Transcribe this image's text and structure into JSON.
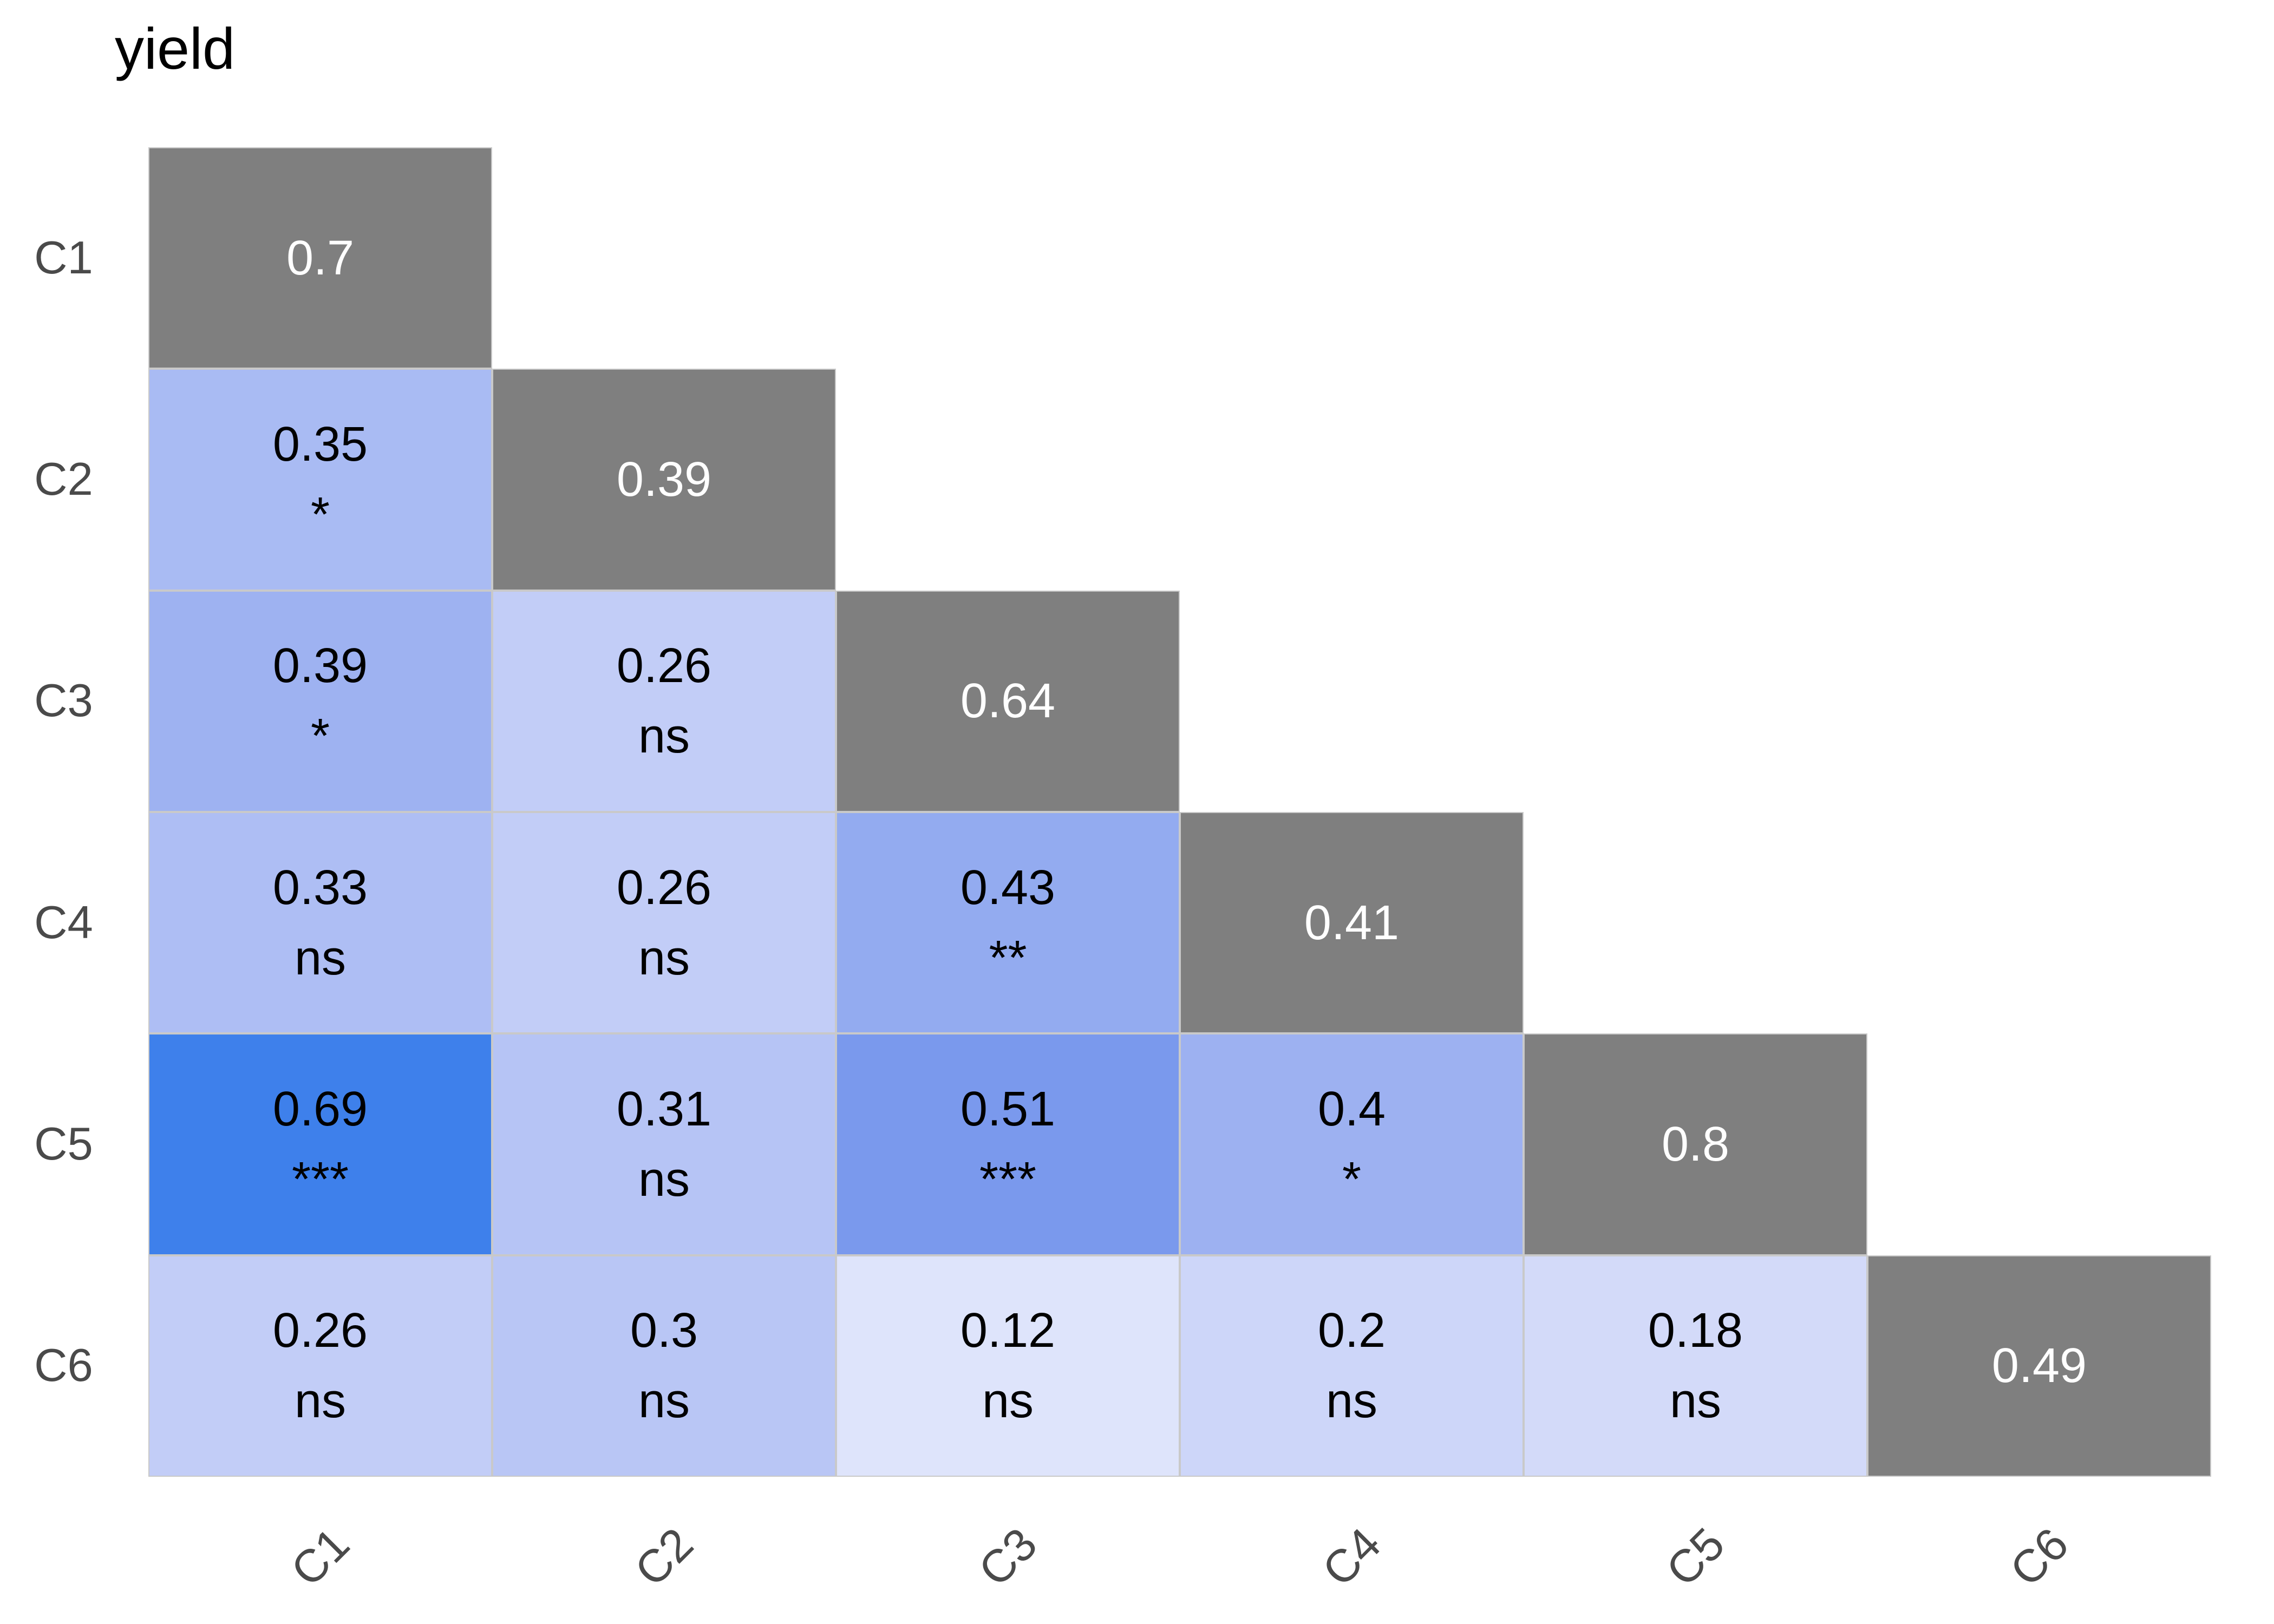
{
  "title": "yield",
  "colors": {
    "background": "#ffffff",
    "diagonal_fill": "#7f7f7f",
    "diagonal_text": "#ffffff",
    "cell_text": "#000000",
    "cell_border": "#c9c9c9",
    "axis_label": "#4a4a4a",
    "title_text": "#000000"
  },
  "chart_data": {
    "type": "heatmap",
    "subtype": "lower-triangular-correlation-matrix",
    "title": "yield",
    "rows": [
      "C1",
      "C2",
      "C3",
      "C4",
      "C5",
      "C6"
    ],
    "cols": [
      "C1",
      "C2",
      "C3",
      "C4",
      "C5",
      "C6"
    ],
    "legend": "none",
    "x_tick_angle": 45,
    "diagonal": [
      0.7,
      0.39,
      0.64,
      0.41,
      0.8,
      0.49
    ],
    "cells": [
      {
        "row": "C2",
        "col": "C1",
        "value": 0.35,
        "sig": "*",
        "color": "#a9bbf3"
      },
      {
        "row": "C3",
        "col": "C1",
        "value": 0.39,
        "sig": "*",
        "color": "#9eb2f1"
      },
      {
        "row": "C3",
        "col": "C2",
        "value": 0.26,
        "sig": "ns",
        "color": "#c2cdf7"
      },
      {
        "row": "C4",
        "col": "C1",
        "value": 0.33,
        "sig": "ns",
        "color": "#aebef4"
      },
      {
        "row": "C4",
        "col": "C2",
        "value": 0.26,
        "sig": "ns",
        "color": "#c2cdf7"
      },
      {
        "row": "C4",
        "col": "C3",
        "value": 0.43,
        "sig": "**",
        "color": "#93abf0"
      },
      {
        "row": "C5",
        "col": "C1",
        "value": 0.69,
        "sig": "***",
        "color": "#3e80eb"
      },
      {
        "row": "C5",
        "col": "C2",
        "value": 0.31,
        "sig": "ns",
        "color": "#b6c4f5"
      },
      {
        "row": "C5",
        "col": "C3",
        "value": 0.51,
        "sig": "***",
        "color": "#7a99ed"
      },
      {
        "row": "C5",
        "col": "C4",
        "value": 0.4,
        "sig": "*",
        "color": "#9db1f1"
      },
      {
        "row": "C6",
        "col": "C1",
        "value": 0.26,
        "sig": "ns",
        "color": "#c2cdf7"
      },
      {
        "row": "C6",
        "col": "C2",
        "value": 0.3,
        "sig": "ns",
        "color": "#b9c6f5"
      },
      {
        "row": "C6",
        "col": "C3",
        "value": 0.12,
        "sig": "ns",
        "color": "#dee4fb"
      },
      {
        "row": "C6",
        "col": "C4",
        "value": 0.2,
        "sig": "ns",
        "color": "#cdd6f9"
      },
      {
        "row": "C6",
        "col": "C5",
        "value": 0.18,
        "sig": "ns",
        "color": "#d3daf9"
      }
    ]
  }
}
